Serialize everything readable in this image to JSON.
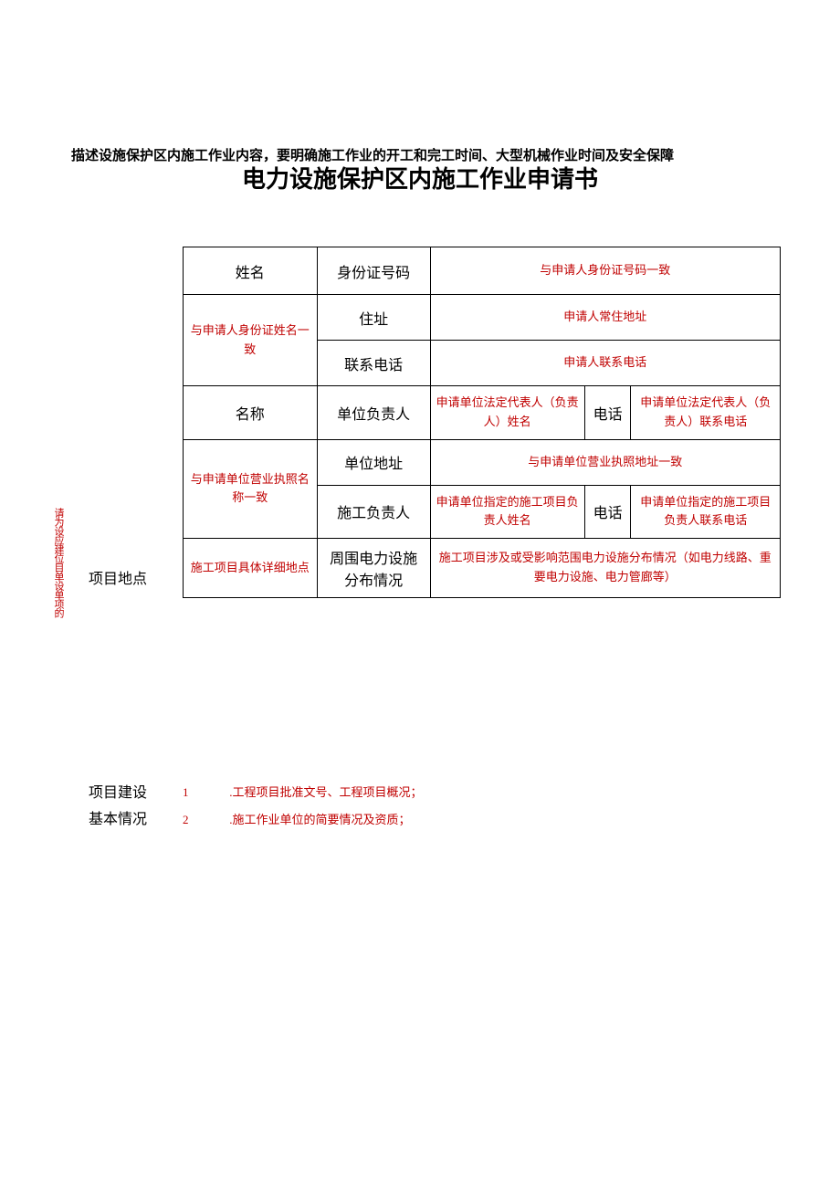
{
  "intro_text": "描述设施保护区内施工作业内容，要明确施工作业的开工和完工时间、大型机械作业时间及安全保障",
  "title": "电力设施保护区内施工作业申请书",
  "side_label": "请为设应建位目单设单项的",
  "row_labels": {
    "project_location": "项目地点",
    "basic_info_l1": "项目建设",
    "basic_info_l2": "基本情况"
  },
  "table": {
    "r1": {
      "c1": "姓名",
      "c2": "身份证号码",
      "c3": "与申请人身份证号码一致"
    },
    "r2_3": {
      "c1": "与申请人身份证姓名一致"
    },
    "r2": {
      "c2": "住址",
      "c3": "申请人常住地址"
    },
    "r3": {
      "c2": "联系电话",
      "c3": "申请人联系电话"
    },
    "r4": {
      "c1": "名称",
      "c2": "单位负责人",
      "c3": "申请单位法定代表人（负责人）姓名",
      "c4": "电话",
      "c5": "申请单位法定代表人（负责人）联系电话"
    },
    "r5_6": {
      "c1": "与申请单位营业执照名称一致"
    },
    "r5": {
      "c2": "单位地址",
      "c3": "与申请单位营业执照地址一致"
    },
    "r6": {
      "c2": "施工负责人",
      "c3": "申请单位指定的施工项目负责人姓名",
      "c4": "电话",
      "c5": "申请单位指定的施工项目负责人联系电话"
    },
    "r7": {
      "c1": "施工项目具体详细地点",
      "c2": "周围电力设施分布情况",
      "c3": "施工项目涉及或受影响范围电力设施分布情况（如电力线路、重要电力设施、电力管廊等）"
    }
  },
  "basic_info": {
    "item1_num": "1",
    "item1_text": ".工程项目批准文号、工程项目概况；",
    "item2_num": "2",
    "item2_text": ".施工作业单位的简要情况及资质；"
  },
  "colors": {
    "text_black": "#000000",
    "text_red": "#c00000",
    "background": "#ffffff",
    "border": "#000000"
  }
}
